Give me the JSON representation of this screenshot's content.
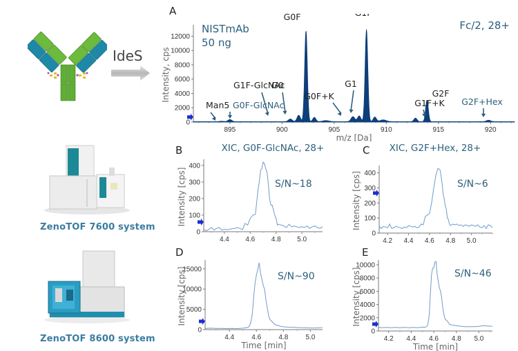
{
  "left": {
    "ides_label": "IdeS",
    "instrument1_caption": "ZenoTOF 7600 system",
    "instrument2_caption": "ZenoTOF 8600 system",
    "icons": [
      "antibody-icon",
      "arrow-right-icon",
      "mass-spectrometer-7600-image",
      "mass-spectrometer-8600-image"
    ]
  },
  "colors": {
    "spectrum_fill": "#0d3f7a",
    "xic_line": "#6f9bc8",
    "annotation_teal": "#2d5f7c",
    "caption_blue": "#3a7ca0",
    "marker_blue": "#1a2fd0"
  },
  "chart_data": [
    {
      "id": "A",
      "type": "area",
      "panel_label": "A",
      "title_left_line1": "NISTmAb",
      "title_left_line2": "50 ng",
      "title_right": "Fc/2, 28+",
      "xlabel": "m/z [Da]",
      "ylabel": "Intensity, cps",
      "xlim": [
        891.5,
        922.3
      ],
      "ylim": [
        0,
        13200
      ],
      "xticks": [
        895,
        900,
        905,
        910,
        915,
        920
      ],
      "yticks": [
        0,
        2000,
        4000,
        6000,
        8000,
        10000,
        12000
      ],
      "peaks": [
        {
          "x": 894.2,
          "y": 60,
          "w": 0.18
        },
        {
          "x": 895.0,
          "y": 300,
          "w": 0.18
        },
        {
          "x": 900.8,
          "y": 380,
          "w": 0.18
        },
        {
          "x": 901.6,
          "y": 900,
          "w": 0.16
        },
        {
          "x": 902.3,
          "y": 12700,
          "w": 0.13
        },
        {
          "x": 903.1,
          "y": 600,
          "w": 0.15
        },
        {
          "x": 904.2,
          "y": 150,
          "w": 0.3
        },
        {
          "x": 906.8,
          "y": 700,
          "w": 0.18
        },
        {
          "x": 907.4,
          "y": 800,
          "w": 0.16
        },
        {
          "x": 908.1,
          "y": 12900,
          "w": 0.13
        },
        {
          "x": 908.9,
          "y": 650,
          "w": 0.15
        },
        {
          "x": 909.7,
          "y": 250,
          "w": 0.3
        },
        {
          "x": 912.8,
          "y": 500,
          "w": 0.15
        },
        {
          "x": 913.9,
          "y": 3000,
          "w": 0.13
        },
        {
          "x": 919.8,
          "y": 200,
          "w": 0.2
        }
      ],
      "annotations": [
        {
          "label": "Man5",
          "x": 894.2,
          "style": "dark"
        },
        {
          "label": "G0F-GlcNAc",
          "x": 895.0,
          "style": "teal"
        },
        {
          "label": "G1F-GlcNAc",
          "x": 900.8,
          "style": "dark"
        },
        {
          "label": "G0",
          "x": 901.6,
          "style": "dark"
        },
        {
          "label": "G0F",
          "x": 902.3,
          "style": "dark"
        },
        {
          "label": "G0F+K",
          "x": 906.8,
          "style": "dark"
        },
        {
          "label": "G1",
          "x": 907.4,
          "style": "dark"
        },
        {
          "label": "G1F",
          "x": 908.1,
          "style": "dark"
        },
        {
          "label": "G1F+K",
          "x": 912.8,
          "style": "dark"
        },
        {
          "label": "G2F",
          "x": 913.9,
          "style": "dark"
        },
        {
          "label": "G2F+Hex",
          "x": 919.8,
          "style": "teal"
        }
      ],
      "threshold_marker_y": 700
    },
    {
      "id": "B",
      "type": "line",
      "panel_label": "B",
      "title": "XIC, G0F-GlcNAc, 28+",
      "sn_label": "S/N~18",
      "xlabel": "Time [min]",
      "ylabel": "Intensity [cps]",
      "xlim": [
        4.24,
        5.16
      ],
      "ylim": [
        0,
        420
      ],
      "xticks": [
        4.4,
        4.6,
        4.8,
        5.0
      ],
      "yticks": [
        0,
        100,
        200,
        300,
        400
      ],
      "x": [
        4.24,
        4.26,
        4.28,
        4.3,
        4.32,
        4.34,
        4.36,
        4.38,
        4.4,
        4.42,
        4.44,
        4.46,
        4.48,
        4.5,
        4.52,
        4.54,
        4.56,
        4.57,
        4.58,
        4.6,
        4.61,
        4.62,
        4.64,
        4.65,
        4.66,
        4.67,
        4.68,
        4.69,
        4.7,
        4.71,
        4.72,
        4.73,
        4.74,
        4.75,
        4.76,
        4.77,
        4.78,
        4.79,
        4.8,
        4.81,
        4.82,
        4.84,
        4.86,
        4.88,
        4.9,
        4.92,
        4.94,
        4.96,
        4.98,
        5.0,
        5.02,
        5.04,
        5.06,
        5.08,
        5.1,
        5.12,
        5.14,
        5.16
      ],
      "y": [
        15,
        5,
        15,
        25,
        10,
        20,
        25,
        10,
        15,
        12,
        15,
        18,
        20,
        25,
        20,
        12,
        50,
        45,
        40,
        80,
        90,
        100,
        105,
        180,
        250,
        300,
        370,
        380,
        420,
        410,
        380,
        360,
        290,
        200,
        160,
        160,
        130,
        100,
        80,
        40,
        45,
        40,
        35,
        25,
        45,
        30,
        35,
        30,
        25,
        30,
        25,
        35,
        20,
        30,
        35,
        25,
        20,
        30
      ]
    },
    {
      "id": "C",
      "type": "line",
      "panel_label": "C",
      "title": "XIC, G2F+Hex, 28+",
      "sn_label": "S/N~6",
      "xlabel": "Time [min]",
      "ylabel": "Intensity [cps]",
      "xlim": [
        4.12,
        5.2
      ],
      "ylim": [
        0,
        430
      ],
      "xticks": [
        4.2,
        4.4,
        4.6,
        4.8,
        5.0
      ],
      "yticks": [
        0,
        100,
        200,
        300,
        400
      ],
      "x": [
        4.12,
        4.14,
        4.16,
        4.18,
        4.2,
        4.22,
        4.24,
        4.26,
        4.28,
        4.3,
        4.32,
        4.34,
        4.36,
        4.38,
        4.4,
        4.42,
        4.44,
        4.46,
        4.48,
        4.5,
        4.52,
        4.54,
        4.56,
        4.58,
        4.6,
        4.62,
        4.64,
        4.66,
        4.68,
        4.69,
        4.7,
        4.71,
        4.72,
        4.73,
        4.74,
        4.75,
        4.76,
        4.77,
        4.78,
        4.79,
        4.8,
        4.82,
        4.84,
        4.86,
        4.88,
        4.9,
        4.92,
        4.94,
        4.96,
        4.98,
        5.0,
        5.02,
        5.04,
        5.06,
        5.08,
        5.1,
        5.12,
        5.14,
        5.16,
        5.18,
        5.2
      ],
      "y": [
        45,
        30,
        45,
        40,
        35,
        60,
        30,
        35,
        45,
        40,
        35,
        30,
        40,
        35,
        50,
        45,
        40,
        45,
        35,
        40,
        60,
        55,
        110,
        120,
        130,
        200,
        300,
        380,
        430,
        425,
        420,
        380,
        330,
        260,
        230,
        180,
        160,
        100,
        90,
        60,
        50,
        60,
        55,
        60,
        50,
        55,
        45,
        55,
        50,
        45,
        55,
        50,
        45,
        55,
        40,
        35,
        50,
        30,
        55,
        50,
        35
      ]
    },
    {
      "id": "D",
      "type": "line",
      "panel_label": "D",
      "title": "",
      "sn_label": "S/N~90",
      "xlabel": "Time [min]",
      "ylabel": "Intensity [cps]",
      "xlim": [
        4.22,
        5.09
      ],
      "ylim": [
        0,
        16500
      ],
      "xticks": [
        4.4,
        4.6,
        4.8,
        5.0
      ],
      "yticks": [
        0,
        5000,
        10000,
        15000
      ],
      "x": [
        4.22,
        4.26,
        4.3,
        4.34,
        4.38,
        4.42,
        4.46,
        4.5,
        4.52,
        4.54,
        4.55,
        4.56,
        4.57,
        4.58,
        4.59,
        4.6,
        4.61,
        4.62,
        4.63,
        4.64,
        4.65,
        4.66,
        4.67,
        4.68,
        4.69,
        4.7,
        4.71,
        4.72,
        4.74,
        4.76,
        4.78,
        4.8,
        4.84,
        4.88,
        4.92,
        4.96,
        5.0,
        5.04,
        5.09
      ],
      "y": [
        300,
        350,
        300,
        300,
        250,
        300,
        250,
        350,
        450,
        600,
        1000,
        2000,
        4000,
        8000,
        11500,
        13500,
        14800,
        16500,
        14000,
        12500,
        11000,
        10000,
        7500,
        5500,
        3500,
        2500,
        2200,
        1800,
        1200,
        1000,
        800,
        700,
        600,
        550,
        500,
        450,
        400,
        400,
        500
      ]
    },
    {
      "id": "E",
      "type": "line",
      "panel_label": "E",
      "title": "",
      "sn_label": "S/N~46",
      "xlabel": "Time [min]",
      "ylabel": "Intensity [cps]",
      "xlim": [
        4.11,
        5.12
      ],
      "ylim": [
        0,
        10300
      ],
      "xticks": [
        4.2,
        4.4,
        4.6,
        4.8,
        5.0
      ],
      "yticks": [
        0,
        2000,
        4000,
        6000,
        8000,
        10000
      ],
      "x": [
        4.11,
        4.14,
        4.18,
        4.22,
        4.26,
        4.3,
        4.34,
        4.38,
        4.42,
        4.46,
        4.5,
        4.52,
        4.54,
        4.55,
        4.56,
        4.57,
        4.58,
        4.59,
        4.6,
        4.61,
        4.62,
        4.63,
        4.64,
        4.65,
        4.66,
        4.67,
        4.68,
        4.69,
        4.7,
        4.72,
        4.74,
        4.76,
        4.8,
        4.84,
        4.88,
        4.92,
        4.96,
        5.0,
        5.04,
        5.08,
        5.12
      ],
      "y": [
        550,
        500,
        550,
        500,
        550,
        500,
        550,
        500,
        550,
        500,
        600,
        550,
        700,
        1200,
        2500,
        5500,
        8500,
        9500,
        9500,
        10400,
        10500,
        8500,
        7500,
        6500,
        6000,
        5000,
        3500,
        2500,
        1800,
        1500,
        1000,
        900,
        800,
        700,
        650,
        650,
        650,
        700,
        800,
        750,
        700
      ]
    }
  ]
}
